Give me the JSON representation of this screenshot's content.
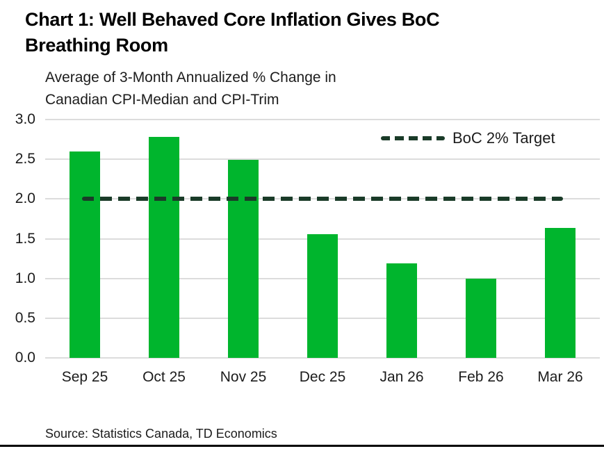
{
  "header": {
    "title_lines": [
      "Chart 1: Well Behaved Core Inflation Gives BoC",
      "Breathing Room"
    ],
    "subtitle_lines": [
      "Average of 3-Month Annualized % Change in",
      "Canadian CPI-Median and CPI-Trim"
    ]
  },
  "chart_data": {
    "type": "bar",
    "title": "Chart 1: Well Behaved Core Inflation Gives BoC Breathing Room",
    "subtitle": "Average of 3-Month Annualized % Change in Canadian CPI-Median and CPI-Trim",
    "categories": [
      "Sep 25",
      "Oct 25",
      "Nov 25",
      "Dec 25",
      "Jan 26",
      "Feb 26",
      "Mar 26"
    ],
    "values": [
      2.6,
      2.78,
      2.49,
      1.56,
      1.19,
      1.0,
      1.64
    ],
    "xlabel": "",
    "ylabel": "",
    "ylim": [
      0,
      3.0
    ],
    "yticks": [
      "3.0",
      "2.5",
      "2.0",
      "1.5",
      "1.0",
      "0.5",
      "0.0"
    ],
    "grid": "horizontal",
    "legend_position": "top-right-inside",
    "reference_line": {
      "value": 2.0,
      "label": "BoC 2% Target",
      "style": "dashed"
    },
    "colors": {
      "bar": "#00b52d",
      "reference": "#1a3b28",
      "grid": "#dcdcdc"
    }
  },
  "footer": {
    "source": "Source: Statistics Canada, TD Economics"
  }
}
